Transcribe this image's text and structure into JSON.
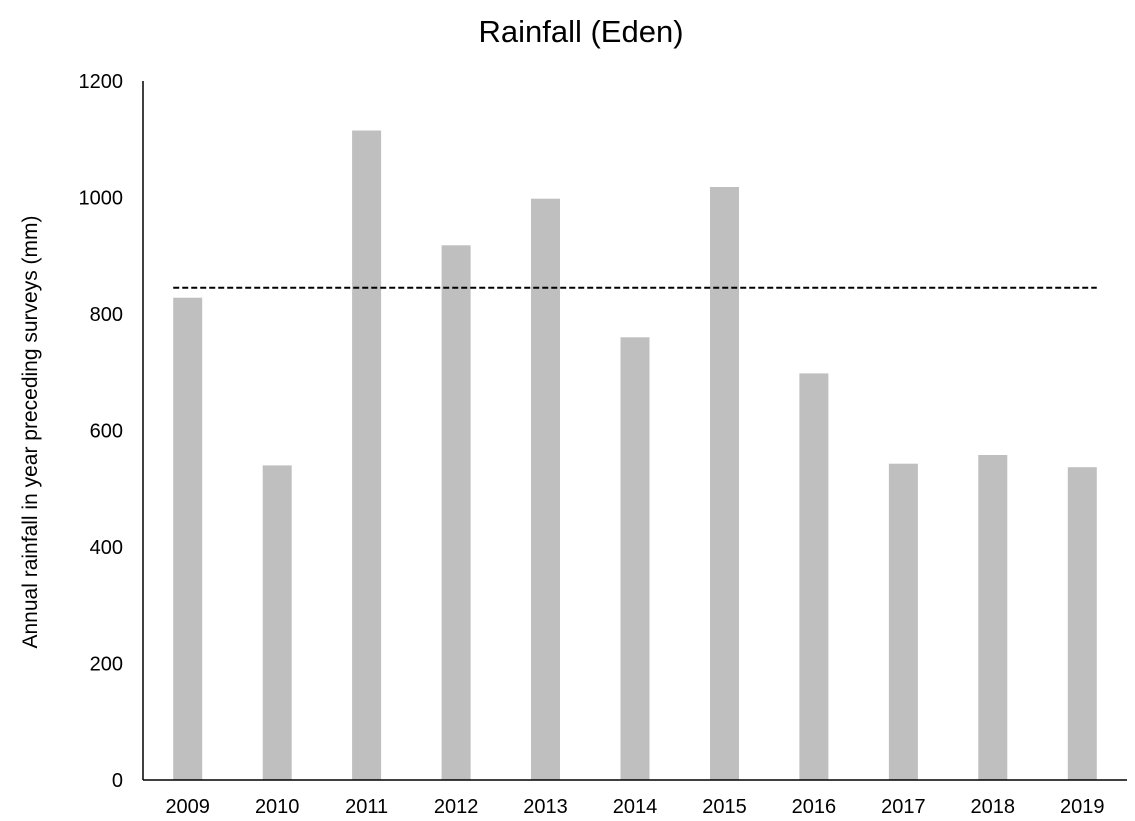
{
  "chart_data": {
    "type": "bar",
    "title": "Rainfall (Eden)",
    "xlabel": "",
    "ylabel": "Annual rainfall in year preceding surveys (mm)",
    "categories": [
      "2009",
      "2010",
      "2011",
      "2012",
      "2013",
      "2014",
      "2015",
      "2016",
      "2017",
      "2018",
      "2019"
    ],
    "values": [
      828,
      540,
      1115,
      918,
      998,
      760,
      1018,
      698,
      543,
      558,
      537
    ],
    "yticks": [
      "0",
      "200",
      "400",
      "600",
      "800",
      "1000",
      "1200"
    ],
    "ylim": [
      0,
      1200
    ],
    "reference_line": {
      "value": 845,
      "style": "dashed"
    },
    "grid": false,
    "legend": "none",
    "colors": {
      "bar": "#bfbfbf",
      "axis": "#000000",
      "reference_line": "#000000"
    }
  }
}
